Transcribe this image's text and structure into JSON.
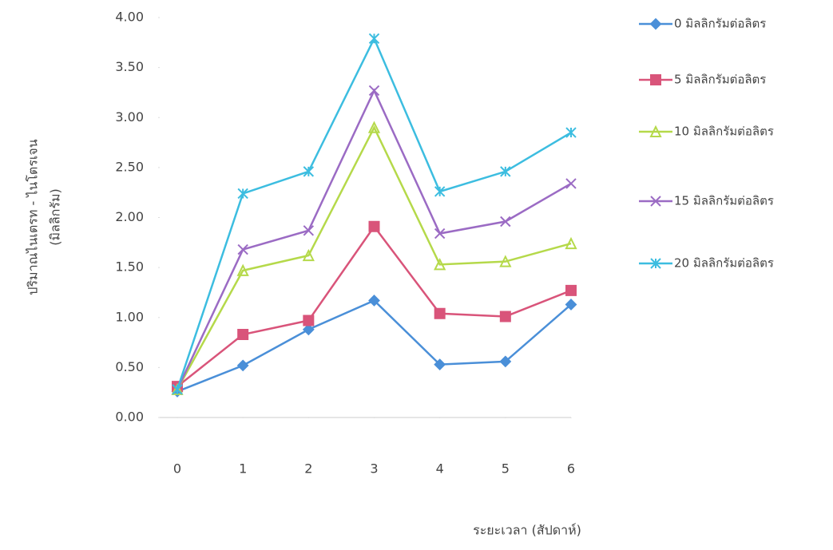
{
  "chart_data": {
    "type": "line",
    "xlabel": "ระยะเวลา (สัปดาห์)",
    "ylabel": [
      "ปริมาณไนเตรท - ไนโตรเจน",
      "(มิลลิกรัม)"
    ],
    "x": [
      0,
      1,
      2,
      3,
      4,
      5,
      6
    ],
    "xlim": [
      0,
      6
    ],
    "xticks": [
      0,
      1,
      2,
      3,
      4,
      5,
      6
    ],
    "ylim": [
      0,
      4
    ],
    "yticks": [
      {
        "value": 0,
        "label": "0.00"
      },
      {
        "value": 0.5,
        "label": "0.50"
      },
      {
        "value": 1,
        "label": "1.00"
      },
      {
        "value": 1.5,
        "label": "1.50"
      },
      {
        "value": 2,
        "label": "2.00"
      },
      {
        "value": 2.5,
        "label": "2.50"
      },
      {
        "value": 3,
        "label": "3.00"
      },
      {
        "value": 3.5,
        "label": "3.50"
      },
      {
        "value": 4,
        "label": "4.00"
      }
    ],
    "legend": "right",
    "series": [
      {
        "name": "0 มิลลิกรัมต่อลิตร",
        "color": "#4a8fd8",
        "marker": "diamond",
        "values": [
          0.26,
          0.52,
          0.88,
          1.17,
          0.53,
          0.56,
          1.13
        ]
      },
      {
        "name": "5 มิลลิกรัมต่อลิตร",
        "color": "#d9547a",
        "marker": "square",
        "values": [
          0.31,
          0.83,
          0.97,
          1.91,
          1.04,
          1.01,
          1.27
        ]
      },
      {
        "name": "10 มิลลิกรัมต่อลิตร",
        "color": "#b5d94a",
        "marker": "triangle",
        "values": [
          0.28,
          1.47,
          1.62,
          2.9,
          1.53,
          1.56,
          1.74
        ]
      },
      {
        "name": "15 มิลลิกรัมต่อลิตร",
        "color": "#9b6bc4",
        "marker": "x",
        "values": [
          0.28,
          1.68,
          1.87,
          3.27,
          1.84,
          1.96,
          2.34
        ]
      },
      {
        "name": "20 มิลลิกรัมต่อลิตร",
        "color": "#3cbde0",
        "marker": "star",
        "values": [
          0.28,
          2.24,
          2.46,
          3.79,
          2.26,
          2.46,
          2.85
        ]
      }
    ]
  }
}
